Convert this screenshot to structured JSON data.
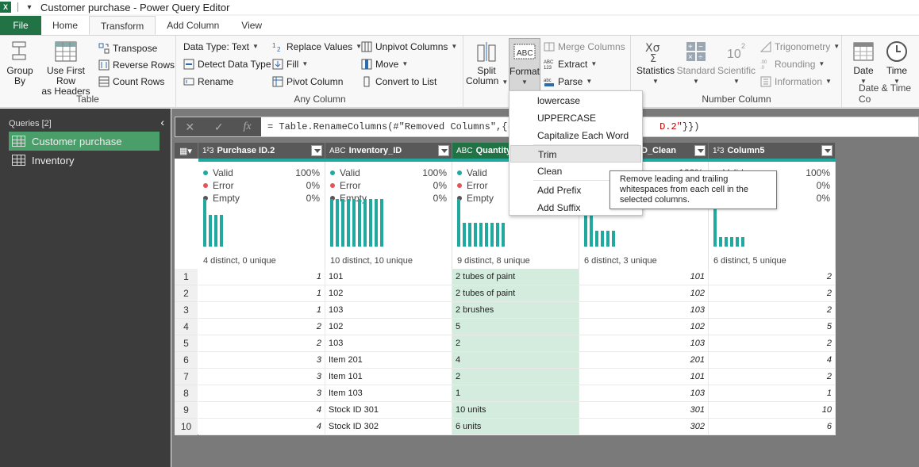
{
  "window": {
    "title": "Customer purchase - Power Query Editor",
    "app_icon": "excel-icon"
  },
  "tabs": [
    {
      "label": "File"
    },
    {
      "label": "Home"
    },
    {
      "label": "Transform"
    },
    {
      "label": "Add Column"
    },
    {
      "label": "View"
    }
  ],
  "ribbon": {
    "table_group": {
      "label": "Table",
      "group_by": [
        "Group",
        "By"
      ],
      "use_first_row": [
        "Use First Row",
        "as Headers"
      ],
      "transpose": "Transpose",
      "reverse_rows": "Reverse Rows",
      "count_rows": "Count Rows"
    },
    "any_column_group": {
      "label": "Any Column",
      "data_type": "Data Type: Text",
      "detect_data_type": "Detect Data Type",
      "rename": "Rename",
      "replace_values": "Replace Values",
      "fill": "Fill",
      "pivot_column": "Pivot Column",
      "unpivot_columns": "Unpivot Columns",
      "move": "Move",
      "convert_to_list": "Convert to List"
    },
    "text_column_group": {
      "split_column": [
        "Split",
        "Column"
      ],
      "format": "Format",
      "merge_columns": "Merge Columns",
      "extract": "Extract",
      "parse": "Parse"
    },
    "number_column_group": {
      "label": "Number Column",
      "statistics": "Statistics",
      "standard": "Standard",
      "scientific": "Scientific",
      "trigonometry": "Trigonometry",
      "rounding": "Rounding",
      "information": "Information"
    },
    "datetime_group": {
      "label": "Date & Time Co",
      "date": "Date",
      "time": "Time"
    }
  },
  "sidebar": {
    "header": "Queries [2]",
    "items": [
      {
        "label": "Customer purchase",
        "selected": true
      },
      {
        "label": "Inventory",
        "selected": false
      }
    ]
  },
  "formula_bar": {
    "prefix": "= Table.RenameColumns(#\"Removed Columns\",{{\"",
    "hidden_red": "P",
    "suffix_red": "D.2\"",
    "tail": "}})"
  },
  "columns": [
    {
      "name": "Purchase ID.2",
      "type_icon": "1²3",
      "valid": "100%",
      "error": "0%",
      "empty": "0%",
      "distinct": "4 distinct, 0 unique",
      "bars": [
        60,
        40,
        40,
        40
      ]
    },
    {
      "name": "Inventory_ID",
      "type_icon": "ABC",
      "valid": "100%",
      "error": "0%",
      "empty": "0%",
      "distinct": "10 distinct, 10 unique",
      "bars": [
        60,
        60,
        60,
        60,
        60,
        60,
        60,
        60,
        60,
        60
      ]
    },
    {
      "name": "Quantity",
      "type_icon": "ABC",
      "valid": "",
      "error": "",
      "empty": "",
      "distinct": "9 distinct, 8 unique",
      "bars": [
        60,
        30,
        30,
        30,
        30,
        30,
        30,
        30,
        30
      ]
    },
    {
      "name": "D_Clean",
      "type_icon": "",
      "valid": "100%",
      "error": "",
      "empty": "",
      "distinct": "6 distinct, 3 unique",
      "bars": [
        60,
        40,
        20,
        20,
        20,
        20
      ]
    },
    {
      "name": "Column5",
      "type_icon": "1²3",
      "valid": "100%",
      "error": "0%",
      "empty": "0%",
      "distinct": "6 distinct, 5 unique",
      "bars": [
        60,
        12,
        12,
        12,
        12,
        12
      ]
    }
  ],
  "profile_labels": {
    "valid": "Valid",
    "error": "Error",
    "empty": "Empty"
  },
  "rows": [
    [
      "1",
      "1",
      "101",
      "2 tubes of paint",
      "101",
      "2"
    ],
    [
      "2",
      "1",
      "102",
      "2 tubes of paint",
      "102",
      "2"
    ],
    [
      "3",
      "1",
      "103",
      "2 brushes",
      "103",
      "2"
    ],
    [
      "4",
      "2",
      "102",
      "5",
      "102",
      "5"
    ],
    [
      "5",
      "2",
      "103",
      "2",
      "103",
      "2"
    ],
    [
      "6",
      "3",
      "Item 201",
      "4",
      "201",
      "4"
    ],
    [
      "7",
      "3",
      "Item 101",
      "2",
      "101",
      "2"
    ],
    [
      "8",
      "3",
      "Item 103",
      "1",
      "103",
      "1"
    ],
    [
      "9",
      "4",
      "Stock ID 301",
      "10 units",
      "301",
      "10"
    ],
    [
      "10",
      "4",
      "Stock ID 302",
      "6 units",
      "302",
      "6"
    ]
  ],
  "format_menu": {
    "items": [
      "lowercase",
      "UPPERCASE",
      "Capitalize Each Word",
      "Trim",
      "Clean",
      "Add Prefix",
      "Add Suffix"
    ],
    "hovered": "Trim"
  },
  "tooltip": "Remove leading and trailing whitespaces from each cell in the selected columns.",
  "colors": {
    "excel_green": "#217346",
    "teal": "#21a9a0",
    "selected_column_bg": "#d3ecdd"
  }
}
